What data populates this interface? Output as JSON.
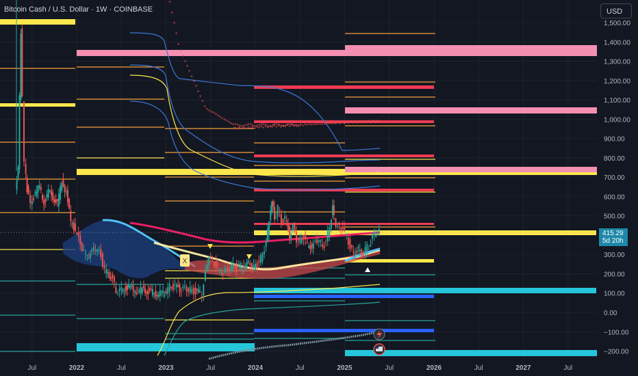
{
  "header": {
    "symbol": "Bitcoin Cash / U.S. Dollar",
    "timeframe": "1W",
    "exchange": "COINBASE",
    "separator": "·",
    "currency_button": "USD"
  },
  "price_tag": {
    "price": "415.29",
    "countdown": "5d 20h"
  },
  "markers": {
    "x_label": "X"
  },
  "colors": {
    "background": "#131722",
    "yellow_zone": "#fde74c",
    "pink_zone": "#f48fb1",
    "red_zone": "#ef3b52",
    "cyan_zone": "#26c6da",
    "blue_zone": "#2962ff",
    "orange_line": "#f7a13b",
    "blue_band": "#3b79d4",
    "magenta_ma": "#e91e63",
    "teal_line": "#26a69a"
  },
  "chart_data": {
    "type": "candlestick",
    "title": "Bitcoin Cash / U.S. Dollar · 1W · COINBASE",
    "ylim": [
      -230,
      1560
    ],
    "y_ticks": [
      {
        "v": 1500,
        "label": "1,500.00"
      },
      {
        "v": 1400,
        "label": "1,400.00"
      },
      {
        "v": 1300,
        "label": "1,300.00"
      },
      {
        "v": 1200,
        "label": "1,200.00"
      },
      {
        "v": 1100,
        "label": "1,100.00"
      },
      {
        "v": 1000,
        "label": "1,000.00"
      },
      {
        "v": 900,
        "label": "900.00"
      },
      {
        "v": 800,
        "label": "800.00"
      },
      {
        "v": 700,
        "label": "700.00"
      },
      {
        "v": 600,
        "label": "600.00"
      },
      {
        "v": 500,
        "label": "500.00"
      },
      {
        "v": 300,
        "label": "300.00"
      },
      {
        "v": 200,
        "label": "200.00"
      },
      {
        "v": 100,
        "label": "100.00"
      },
      {
        "v": 0,
        "label": "0.00"
      },
      {
        "v": -100,
        "label": "−100.00"
      },
      {
        "v": -200,
        "label": "−200.00"
      }
    ],
    "x_ticks": [
      {
        "t": 2021.5,
        "label": "Jul"
      },
      {
        "t": 2022.0,
        "label": "2022"
      },
      {
        "t": 2022.5,
        "label": "Jul"
      },
      {
        "t": 2023.0,
        "label": "2023"
      },
      {
        "t": 2023.5,
        "label": "Jul"
      },
      {
        "t": 2024.0,
        "label": "2024"
      },
      {
        "t": 2024.5,
        "label": "Jul"
      },
      {
        "t": 2025.0,
        "label": "2025"
      },
      {
        "t": 2025.5,
        "label": "Jul"
      },
      {
        "t": 2026.0,
        "label": "2026"
      },
      {
        "t": 2026.5,
        "label": "Jul"
      },
      {
        "t": 2027.0,
        "label": "2027"
      },
      {
        "t": 2027.5,
        "label": "Jul"
      }
    ],
    "x_range": [
      2021.33,
      2028.5
    ],
    "last_price": 415.29,
    "price_path": [
      [
        2021.33,
        620
      ],
      [
        2021.36,
        760
      ],
      [
        2021.39,
        1450
      ],
      [
        2021.41,
        1100
      ],
      [
        2021.43,
        780
      ],
      [
        2021.46,
        640
      ],
      [
        2021.5,
        560
      ],
      [
        2021.55,
        620
      ],
      [
        2021.6,
        650
      ],
      [
        2021.65,
        570
      ],
      [
        2021.7,
        620
      ],
      [
        2021.75,
        600
      ],
      [
        2021.8,
        560
      ],
      [
        2021.85,
        680
      ],
      [
        2021.9,
        620
      ],
      [
        2021.95,
        470
      ],
      [
        2022.0,
        430
      ],
      [
        2022.04,
        380
      ],
      [
        2022.08,
        330
      ],
      [
        2022.12,
        300
      ],
      [
        2022.17,
        300
      ],
      [
        2022.21,
        330
      ],
      [
        2022.25,
        330
      ],
      [
        2022.29,
        290
      ],
      [
        2022.33,
        220
      ],
      [
        2022.38,
        190
      ],
      [
        2022.42,
        170
      ],
      [
        2022.46,
        110
      ],
      [
        2022.5,
        110
      ],
      [
        2022.55,
        120
      ],
      [
        2022.6,
        130
      ],
      [
        2022.65,
        120
      ],
      [
        2022.7,
        110
      ],
      [
        2022.75,
        120
      ],
      [
        2022.8,
        110
      ],
      [
        2022.85,
        105
      ],
      [
        2022.9,
        100
      ],
      [
        2022.95,
        97
      ],
      [
        2023.0,
        100
      ],
      [
        2023.04,
        125
      ],
      [
        2023.08,
        135
      ],
      [
        2023.12,
        130
      ],
      [
        2023.17,
        125
      ],
      [
        2023.21,
        120
      ],
      [
        2023.25,
        125
      ],
      [
        2023.29,
        115
      ],
      [
        2023.33,
        110
      ],
      [
        2023.38,
        105
      ],
      [
        2023.42,
        100
      ],
      [
        2023.46,
        200
      ],
      [
        2023.5,
        300
      ],
      [
        2023.54,
        260
      ],
      [
        2023.58,
        240
      ],
      [
        2023.62,
        220
      ],
      [
        2023.67,
        210
      ],
      [
        2023.71,
        220
      ],
      [
        2023.75,
        240
      ],
      [
        2023.79,
        240
      ],
      [
        2023.83,
        230
      ],
      [
        2023.87,
        250
      ],
      [
        2023.92,
        240
      ],
      [
        2023.96,
        260
      ],
      [
        2024.0,
        230
      ],
      [
        2024.04,
        250
      ],
      [
        2024.08,
        280
      ],
      [
        2024.12,
        330
      ],
      [
        2024.17,
        460
      ],
      [
        2024.2,
        590
      ],
      [
        2024.23,
        480
      ],
      [
        2024.27,
        540
      ],
      [
        2024.31,
        470
      ],
      [
        2024.35,
        480
      ],
      [
        2024.4,
        400
      ],
      [
        2024.44,
        440
      ],
      [
        2024.48,
        380
      ],
      [
        2024.52,
        370
      ],
      [
        2024.56,
        390
      ],
      [
        2024.6,
        350
      ],
      [
        2024.65,
        340
      ],
      [
        2024.69,
        360
      ],
      [
        2024.73,
        380
      ],
      [
        2024.77,
        340
      ],
      [
        2024.81,
        360
      ],
      [
        2024.85,
        450
      ],
      [
        2024.88,
        540
      ],
      [
        2024.92,
        460
      ],
      [
        2024.96,
        430
      ],
      [
        2025.0,
        440
      ],
      [
        2025.04,
        400
      ],
      [
        2025.08,
        330
      ],
      [
        2025.12,
        310
      ],
      [
        2025.17,
        330
      ],
      [
        2025.21,
        290
      ],
      [
        2025.25,
        330
      ],
      [
        2025.29,
        340
      ],
      [
        2025.33,
        390
      ],
      [
        2025.37,
        420
      ],
      [
        2025.4,
        415.29
      ]
    ]
  }
}
